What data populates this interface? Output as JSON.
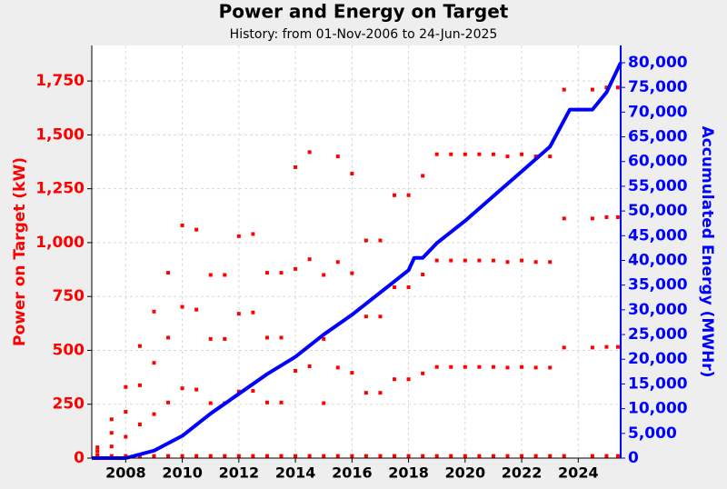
{
  "chart_data": {
    "type": "scatter",
    "title": "Power and Energy on Target",
    "subtitle": "History:  from 01-Nov-2006 to 24-Jun-2025",
    "ylabel": "Power on Target (kW)",
    "y2label": "Accumulated Energy (MWHr)",
    "xlim": [
      2006.8,
      2025.5
    ],
    "xticks": [
      2008,
      2010,
      2012,
      2014,
      2016,
      2018,
      2020,
      2022,
      2024
    ],
    "ylim": [
      0,
      1915
    ],
    "yticks": [
      0,
      250,
      500,
      750,
      {
        "value": 1000,
        "label": "1,000"
      },
      {
        "value": 1250,
        "label": "1,250"
      },
      {
        "value": 1500,
        "label": "1,500"
      },
      {
        "value": 1750,
        "label": "1,750"
      }
    ],
    "y2lim": [
      0,
      83490
    ],
    "y2ticks": [
      0,
      {
        "value": 5000,
        "label": "5,000"
      },
      {
        "value": 10000,
        "label": "10,000"
      },
      {
        "value": 15000,
        "label": "15,000"
      },
      {
        "value": 20000,
        "label": "20,000"
      },
      {
        "value": 25000,
        "label": "25,000"
      },
      {
        "value": 30000,
        "label": "30,000"
      },
      {
        "value": 35000,
        "label": "35,000"
      },
      {
        "value": 40000,
        "label": "40,000"
      },
      {
        "value": 45000,
        "label": "45,000"
      },
      {
        "value": 50000,
        "label": "50,000"
      },
      {
        "value": 55000,
        "label": "55,000"
      },
      {
        "value": 60000,
        "label": "60,000"
      },
      {
        "value": 65000,
        "label": "65,000"
      },
      {
        "value": 70000,
        "label": "70,000"
      },
      {
        "value": 75000,
        "label": "75,000"
      },
      {
        "value": 80000,
        "label": "80,000"
      }
    ],
    "grid": true,
    "series": [
      {
        "type": "scatter",
        "color": "#ff0000",
        "x": [
          2007,
          2007,
          2007,
          2007,
          2007.5,
          2007.5,
          2007.5,
          2007.5,
          2008,
          2008,
          2008,
          2008,
          2008.5,
          2008.5,
          2008.5,
          2008.5,
          2009,
          2009,
          2009,
          2009,
          2009.5,
          2009.5,
          2009.5,
          2009.5,
          2010,
          2010,
          2010,
          2010,
          2010.5,
          2010.5,
          2010.5,
          2010.5,
          2011,
          2011,
          2011,
          2011,
          2011.5,
          2011.5,
          2011.5,
          2011.5,
          2012,
          2012,
          2012,
          2012,
          2012.5,
          2012.5,
          2012.5,
          2012.5,
          2013,
          2013,
          2013,
          2013,
          2013.5,
          2013.5,
          2013.5,
          2013.5,
          2014,
          2014,
          2014,
          2014,
          2014.5,
          2014.5,
          2014.5,
          2014.5,
          2015,
          2015,
          2015,
          2015,
          2015.5,
          2015.5,
          2015.5,
          2015.5,
          2016,
          2016,
          2016,
          2016,
          2016.5,
          2016.5,
          2016.5,
          2016.5,
          2017,
          2017,
          2017,
          2017,
          2017.5,
          2017.5,
          2017.5,
          2017.5,
          2018,
          2018,
          2018,
          2018,
          2018.5,
          2018.5,
          2018.5,
          2018.5,
          2019,
          2019,
          2019,
          2019,
          2019.5,
          2019.5,
          2019.5,
          2019.5,
          2020,
          2020,
          2020,
          2020,
          2020.5,
          2020.5,
          2020.5,
          2020.5,
          2021,
          2021,
          2021,
          2021,
          2021.5,
          2021.5,
          2021.5,
          2021.5,
          2022,
          2022,
          2022,
          2022,
          2022.5,
          2022.5,
          2022.5,
          2022.5,
          2023,
          2023,
          2023,
          2023,
          2023.5,
          2023.5,
          2023.5,
          2023.5,
          2024.5,
          2024.5,
          2024.5,
          2024.5,
          2025,
          2025,
          2025,
          2025,
          2025.4,
          2025.4,
          2025.4,
          2025.4
        ],
        "values": [
          50,
          33,
          15,
          10,
          180,
          117,
          54,
          10,
          330,
          215,
          99,
          10,
          520,
          338,
          156,
          10,
          680,
          442,
          204,
          10,
          860,
          559,
          258,
          10,
          1080,
          702,
          324,
          10,
          1060,
          689,
          318,
          10,
          850,
          553,
          255,
          10,
          850,
          553,
          255,
          10,
          1030,
          670,
          309,
          10,
          1040,
          676,
          312,
          10,
          860,
          559,
          258,
          10,
          860,
          559,
          258,
          10,
          1350,
          878,
          405,
          10,
          1420,
          923,
          426,
          10,
          850,
          553,
          255,
          10,
          1400,
          910,
          420,
          10,
          1320,
          858,
          396,
          10,
          1010,
          657,
          303,
          10,
          1010,
          657,
          303,
          10,
          1220,
          793,
          366,
          10,
          1220,
          793,
          366,
          10,
          1310,
          852,
          393,
          10,
          1410,
          917,
          423,
          10,
          1410,
          917,
          423,
          10,
          1410,
          917,
          423,
          10,
          1410,
          917,
          423,
          10,
          1410,
          917,
          423,
          10,
          1400,
          910,
          420,
          10,
          1410,
          917,
          423,
          10,
          1400,
          910,
          420,
          10,
          1400,
          910,
          420,
          10,
          1710,
          1112,
          513,
          10,
          1710,
          1112,
          513,
          10,
          1720,
          1118,
          516,
          10,
          1720,
          1118,
          516,
          10
        ]
      },
      {
        "type": "line",
        "axis": "y2",
        "color": "#0000ff",
        "x": [
          2006.8,
          2008,
          2009,
          2010,
          2011,
          2012,
          2013,
          2014,
          2015,
          2016,
          2017,
          2018,
          2018.2,
          2018.5,
          2019,
          2020,
          2021,
          2022,
          2023,
          2023.7,
          2024.5,
          2025,
          2025.5
        ],
        "values": [
          0,
          0,
          1500,
          4500,
          9000,
          13000,
          17000,
          20500,
          25000,
          29000,
          33500,
          38000,
          40500,
          40500,
          43500,
          48000,
          53000,
          58000,
          63000,
          70500,
          70500,
          74000,
          80000
        ]
      }
    ]
  }
}
